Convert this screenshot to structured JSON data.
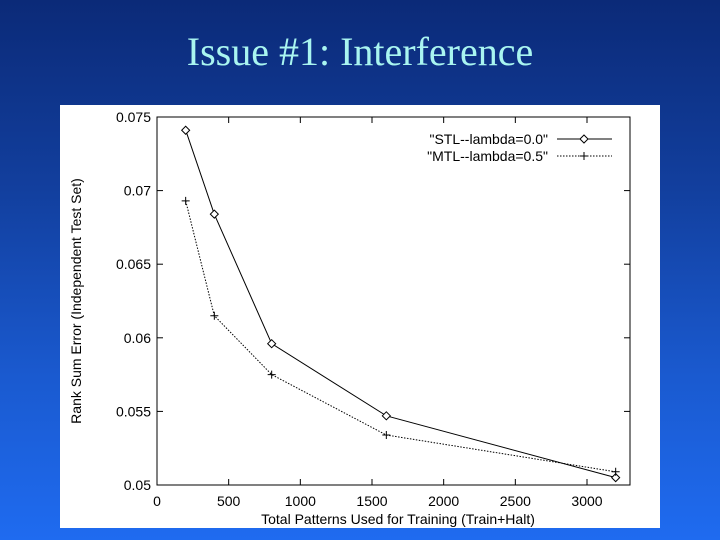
{
  "slide": {
    "title": "Issue #1: Interference"
  },
  "chart_data": {
    "type": "line",
    "title": "",
    "xlabel": "Total Patterns Used for Training (Train+Halt)",
    "ylabel": "Rank Sum Error (Independent Test Set)",
    "xlim": [
      0,
      3300
    ],
    "ylim": [
      0.05,
      0.075
    ],
    "x_ticks": [
      0,
      500,
      1000,
      1500,
      2000,
      2500,
      3000
    ],
    "x_tick_labels": [
      "0",
      "500",
      "1000",
      "1500",
      "2000",
      "2500",
      "3000"
    ],
    "y_ticks": [
      0.05,
      0.055,
      0.06,
      0.065,
      0.07,
      0.075
    ],
    "y_tick_labels": [
      "0.05",
      "0.055",
      "0.06",
      "0.065",
      "0.07",
      "0.075"
    ],
    "grid": false,
    "legend_position": "top-right",
    "series": [
      {
        "name": "\"STL--lambda=0.0\"",
        "marker": "diamond",
        "line_style": "solid",
        "x": [
          200,
          400,
          800,
          1600,
          3200
        ],
        "y": [
          0.0741,
          0.0684,
          0.0596,
          0.0547,
          0.0505
        ]
      },
      {
        "name": "\"MTL--lambda=0.5\"",
        "marker": "plus",
        "line_style": "dotted",
        "x": [
          200,
          400,
          800,
          1600,
          3200
        ],
        "y": [
          0.0693,
          0.0615,
          0.0575,
          0.0534,
          0.0509
        ]
      }
    ]
  }
}
